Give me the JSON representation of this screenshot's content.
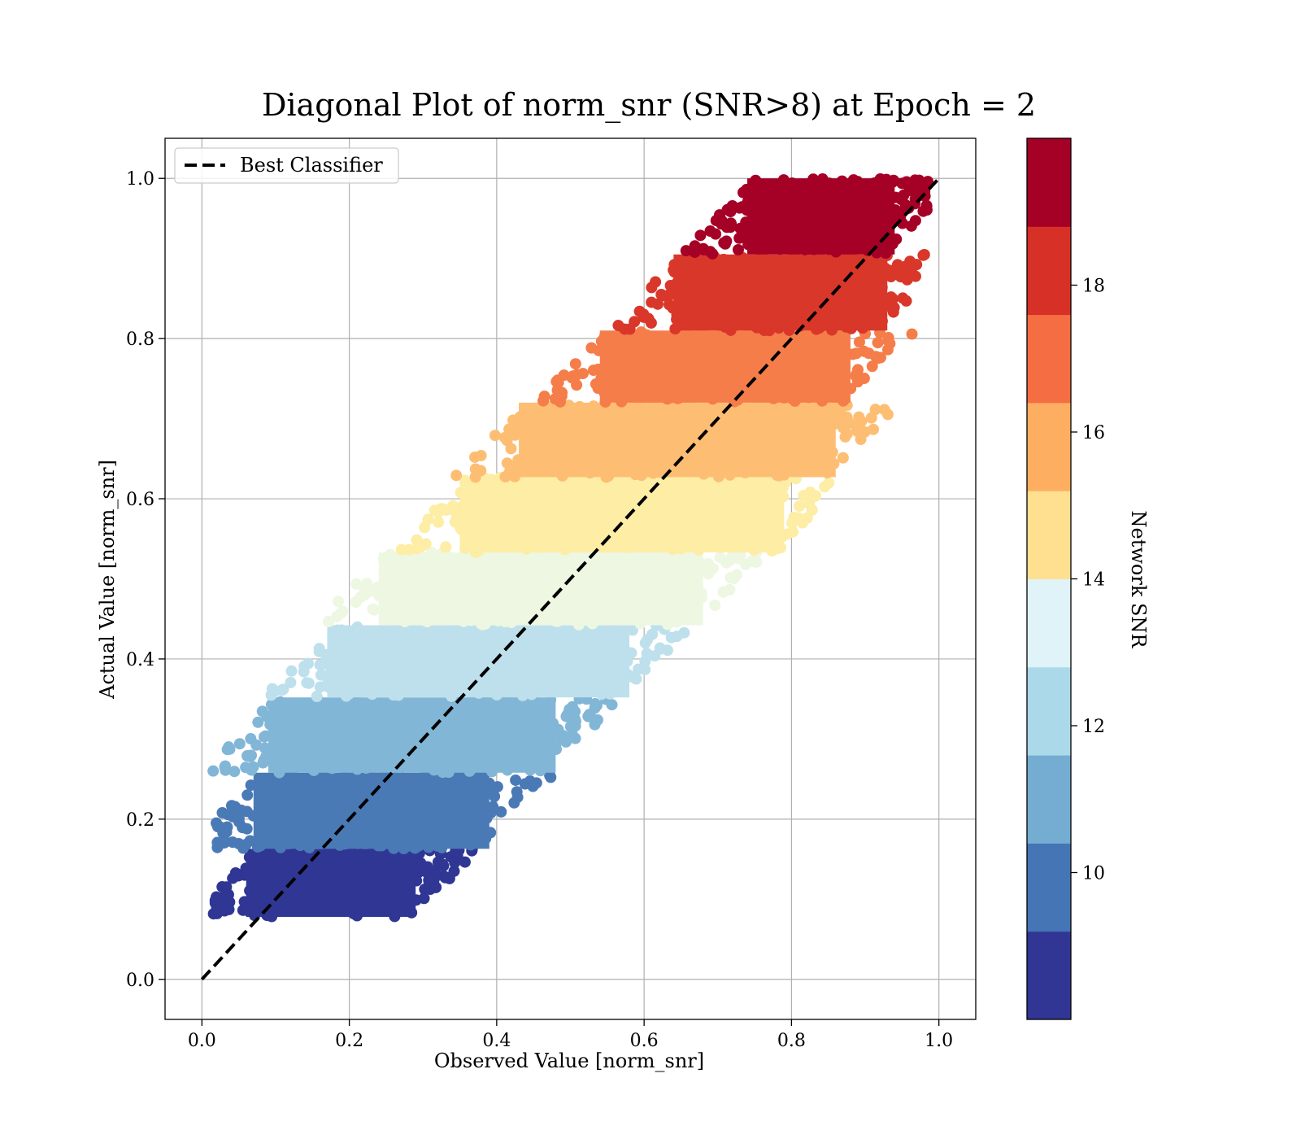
{
  "chart_data": {
    "type": "scatter",
    "title": "Diagonal Plot of norm_snr (SNR>8) at Epoch = 2",
    "xlabel": "Observed Value [norm_snr]",
    "ylabel": "Actual Value [norm_snr]",
    "xlim": [
      -0.05,
      1.05
    ],
    "ylim": [
      -0.05,
      1.05
    ],
    "x_ticks": [
      "0.0",
      "0.2",
      "0.4",
      "0.6",
      "0.8",
      "1.0"
    ],
    "y_ticks": [
      "0.0",
      "0.2",
      "0.4",
      "0.6",
      "0.8",
      "1.0"
    ],
    "grid": true,
    "legend": {
      "placement": "top-left",
      "entries": [
        "Best Classifier"
      ]
    },
    "reference_line": {
      "name": "Best Classifier",
      "style": "dashed",
      "color": "#000000",
      "x": [
        0,
        1
      ],
      "y": [
        0,
        1
      ]
    },
    "colorbar": {
      "label": "Network SNR",
      "range": [
        8,
        20
      ],
      "ticks": [
        "10",
        "12",
        "14",
        "16",
        "18"
      ],
      "colors": [
        "#313695",
        "#4575b4",
        "#74add1",
        "#abd9e9",
        "#e0f3f8",
        "#fee090",
        "#fdae61",
        "#f46d43",
        "#d73027",
        "#a50026"
      ]
    },
    "series": [
      {
        "snr_range": [
          8.0,
          9.2
        ],
        "y_range": [
          0.078,
          0.163
        ],
        "x_core_range": [
          0.02,
          0.33
        ],
        "color": "#2f3693"
      },
      {
        "snr_range": [
          9.2,
          10.4
        ],
        "y_range": [
          0.163,
          0.258
        ],
        "x_core_range": [
          0.03,
          0.43
        ],
        "color": "#4a7ab6"
      },
      {
        "snr_range": [
          10.4,
          11.6
        ],
        "y_range": [
          0.258,
          0.352
        ],
        "x_core_range": [
          0.05,
          0.52
        ],
        "color": "#82b6d6"
      },
      {
        "snr_range": [
          11.6,
          12.8
        ],
        "y_range": [
          0.352,
          0.442
        ],
        "x_core_range": [
          0.13,
          0.62
        ],
        "color": "#bde0ec"
      },
      {
        "snr_range": [
          12.8,
          14.0
        ],
        "y_range": [
          0.442,
          0.533
        ],
        "x_core_range": [
          0.2,
          0.72
        ],
        "color": "#edf7e2"
      },
      {
        "snr_range": [
          14.0,
          15.2
        ],
        "y_range": [
          0.533,
          0.627
        ],
        "x_core_range": [
          0.31,
          0.83
        ],
        "color": "#fdeda5"
      },
      {
        "snr_range": [
          15.2,
          16.4
        ],
        "y_range": [
          0.627,
          0.72
        ],
        "x_core_range": [
          0.39,
          0.9
        ],
        "color": "#fdbe74"
      },
      {
        "snr_range": [
          16.4,
          17.6
        ],
        "y_range": [
          0.72,
          0.81
        ],
        "x_core_range": [
          0.5,
          0.92
        ],
        "color": "#f57d4a"
      },
      {
        "snr_range": [
          17.6,
          18.8
        ],
        "y_range": [
          0.81,
          0.905
        ],
        "x_core_range": [
          0.6,
          0.97
        ],
        "color": "#d9372a"
      },
      {
        "snr_range": [
          18.8,
          20.0
        ],
        "y_range": [
          0.905,
          1.0
        ],
        "x_core_range": [
          0.7,
          0.98
        ],
        "color": "#a50026"
      }
    ]
  }
}
